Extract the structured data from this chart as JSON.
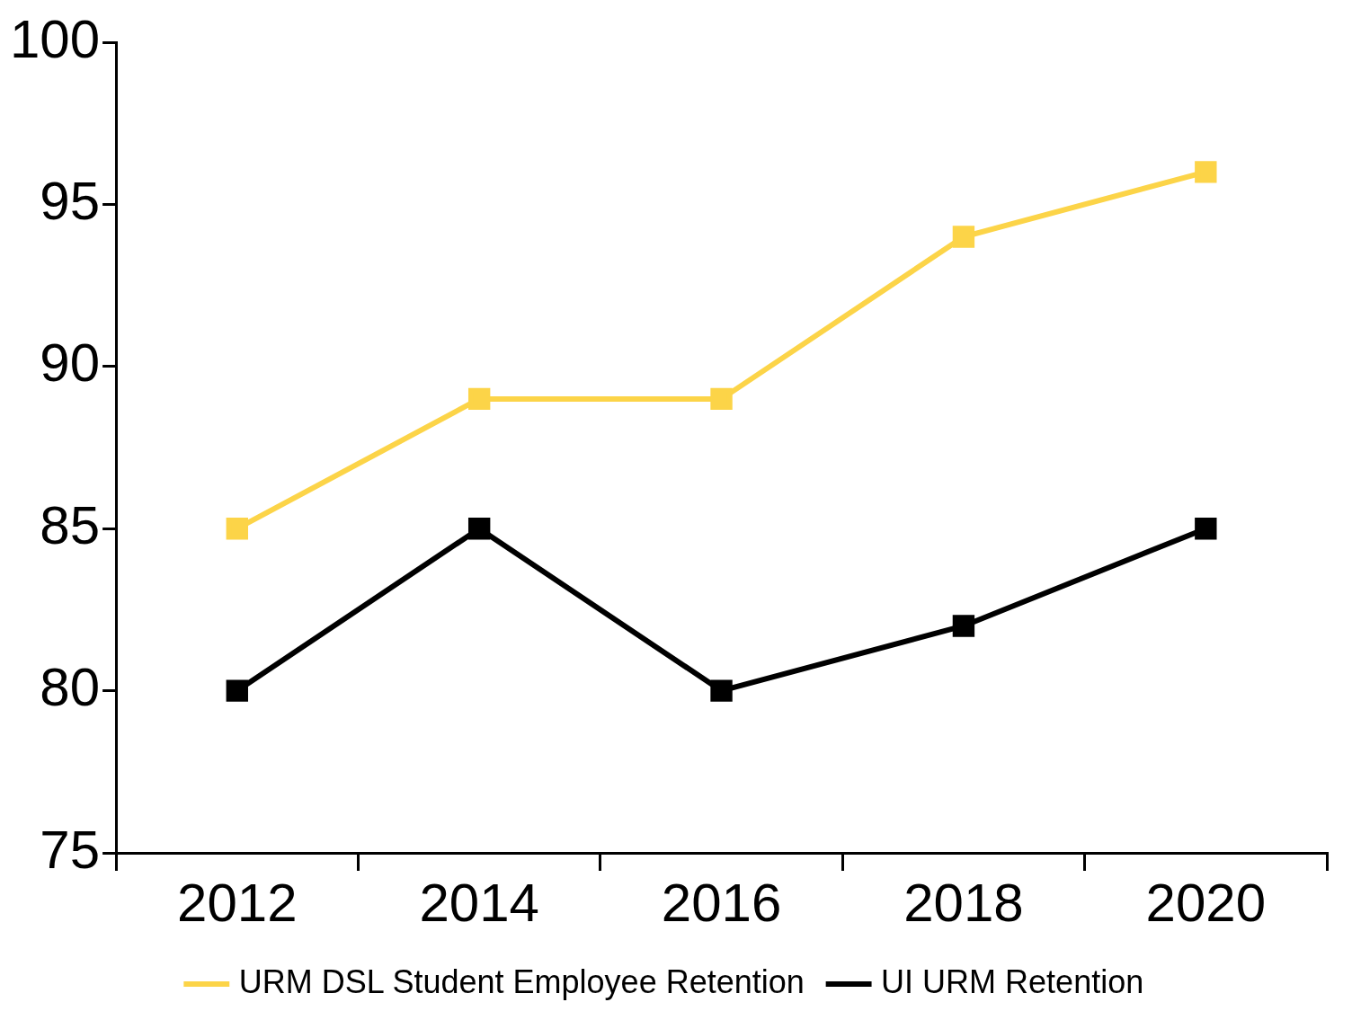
{
  "chart_data": {
    "type": "line",
    "categories": [
      "2012",
      "2014",
      "2016",
      "2018",
      "2020"
    ],
    "series": [
      {
        "name": "URM DSL Student Employee Retention",
        "color": "#fcd448",
        "values": [
          85,
          89,
          89,
          94,
          96
        ]
      },
      {
        "name": "UI URM Retention",
        "color": "#000000",
        "values": [
          80,
          85,
          80,
          82,
          85
        ]
      }
    ],
    "ylim": [
      75,
      100
    ],
    "yticks": [
      75,
      80,
      85,
      90,
      95,
      100
    ],
    "grid": false,
    "legend": "bottom",
    "marker": "square",
    "line_style": "solid"
  }
}
